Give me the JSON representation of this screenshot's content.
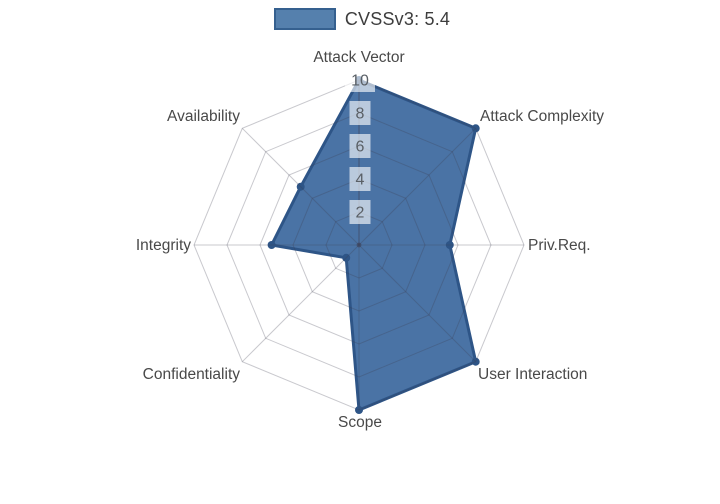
{
  "legend": {
    "label": "CVSSv3: 5.4"
  },
  "chart_data": {
    "type": "radar",
    "title": "",
    "categories": [
      "Attack Vector",
      "Attack Complexity",
      "Priv.Req.",
      "User Interaction",
      "Scope",
      "Confidentiality",
      "Integrity",
      "Availability"
    ],
    "series": [
      {
        "name": "CVSSv3: 5.4",
        "values": [
          10,
          10,
          5.5,
          10,
          10,
          1.1,
          5.3,
          5.0
        ]
      }
    ],
    "radial_ticks": [
      "2",
      "4",
      "6",
      "8",
      "10"
    ],
    "radial_range": [
      0,
      10
    ],
    "grid_shape": "polygon",
    "grid_on": true,
    "legend_position": "top-center",
    "colors": {
      "fill": "rgba(54,100,155,0.9)",
      "line": "#2e5587",
      "marker": "#2e5587",
      "grid": "rgba(60,60,80,0.28)",
      "axis_line": "rgba(60,60,80,0.42)",
      "tick_text": "#5a6066",
      "tick_bg": "rgba(255,255,255,0.62)",
      "label_text": "#494949",
      "legend_text": "#3d3d3d",
      "legend_swatch_fill": "#5580ad",
      "legend_swatch_border": "#35608f"
    }
  }
}
